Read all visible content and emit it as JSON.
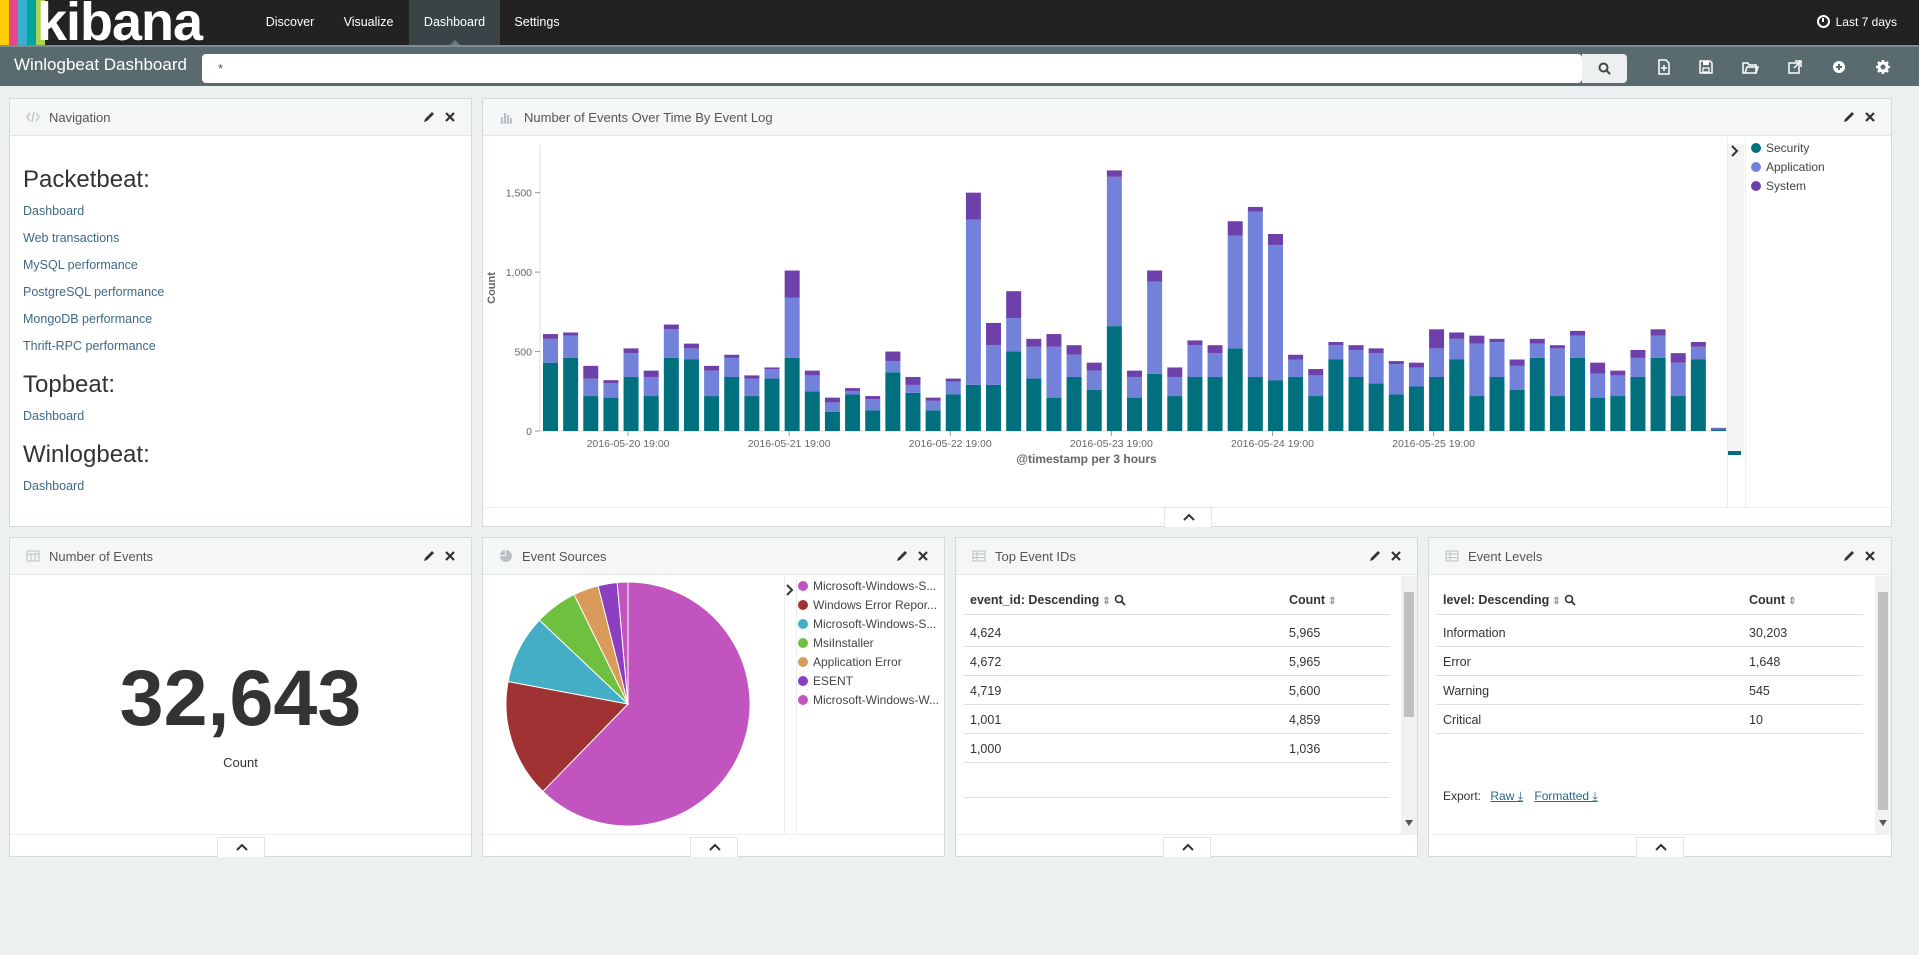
{
  "app": {
    "brand": "kibana",
    "stripe_colors": [
      "#ffcd00",
      "#e8488b",
      "#3caed2",
      "#00a69b",
      "#b0d34f"
    ]
  },
  "nav": {
    "items": [
      "Discover",
      "Visualize",
      "Dashboard",
      "Settings"
    ],
    "active": "Dashboard",
    "time_range": "Last 7 days"
  },
  "subbar": {
    "title": "Winlogbeat Dashboard",
    "query": "*",
    "tools": [
      "new-dashboard-icon",
      "save-icon",
      "open-icon",
      "share-icon",
      "add-panel-icon",
      "settings-icon"
    ]
  },
  "panels": {
    "navigation": {
      "title": "Navigation",
      "sections": [
        {
          "heading": "Packetbeat:",
          "links": [
            "Dashboard",
            "Web transactions",
            "MySQL performance",
            "PostgreSQL performance",
            "MongoDB performance",
            "Thrift-RPC performance"
          ]
        },
        {
          "heading": "Topbeat:",
          "links": [
            "Dashboard"
          ]
        },
        {
          "heading": "Winlogbeat:",
          "links": [
            "Dashboard"
          ]
        }
      ]
    },
    "events_over_time": {
      "title": "Number of Events Over Time By Event Log"
    },
    "number_of_events": {
      "title": "Number of Events",
      "value": "32,643",
      "label": "Count"
    },
    "event_sources": {
      "title": "Event Sources"
    },
    "top_event_ids": {
      "title": "Top Event IDs",
      "headers": [
        "event_id: Descending",
        "Count"
      ],
      "rows": [
        [
          "4,624",
          "5,965"
        ],
        [
          "4,672",
          "5,965"
        ],
        [
          "4,719",
          "5,600"
        ],
        [
          "1,001",
          "4,859"
        ],
        [
          "1,000",
          "1,036"
        ]
      ]
    },
    "event_levels": {
      "title": "Event Levels",
      "headers": [
        "level: Descending",
        "Count"
      ],
      "rows": [
        [
          "Information",
          "30,203"
        ],
        [
          "Error",
          "1,648"
        ],
        [
          "Warning",
          "545"
        ],
        [
          "Critical",
          "10"
        ]
      ],
      "export_label": "Export:",
      "export_raw": "Raw",
      "export_formatted": "Formatted"
    }
  },
  "chart_data": [
    {
      "type": "bar",
      "stacked": true,
      "xlabel": "@timestamp per 3 hours",
      "ylabel": "Count",
      "ylim": [
        0,
        1800
      ],
      "yticks": [
        0,
        500,
        1000,
        1500
      ],
      "ytick_labels": [
        "0",
        "500",
        "1,000",
        "1,500"
      ],
      "xtick_labels": [
        "2016-05-20 19:00",
        "2016-05-21 19:00",
        "2016-05-22 19:00",
        "2016-05-23 19:00",
        "2016-05-24 19:00",
        "2016-05-25 19:00"
      ],
      "legend_position": "right",
      "series": [
        {
          "name": "Security",
          "color": "#00707f",
          "values": [
            430,
            460,
            220,
            210,
            340,
            220,
            460,
            450,
            220,
            340,
            220,
            330,
            460,
            250,
            120,
            230,
            130,
            370,
            240,
            130,
            230,
            290,
            290,
            500,
            330,
            210,
            340,
            260,
            660,
            210,
            360,
            220,
            340,
            340,
            520,
            340,
            320,
            340,
            220,
            450,
            340,
            300,
            230,
            280,
            340,
            450,
            220,
            340,
            260,
            460,
            220,
            460,
            210,
            220,
            340,
            460,
            220,
            450,
            10
          ]
        },
        {
          "name": "Application",
          "color": "#7282da",
          "values": [
            150,
            140,
            110,
            90,
            150,
            120,
            180,
            70,
            160,
            120,
            110,
            60,
            380,
            100,
            60,
            20,
            70,
            70,
            50,
            60,
            80,
            1040,
            250,
            210,
            200,
            320,
            140,
            120,
            940,
            130,
            580,
            120,
            200,
            150,
            710,
            1040,
            850,
            110,
            130,
            90,
            170,
            190,
            190,
            120,
            180,
            130,
            330,
            220,
            150,
            90,
            300,
            140,
            150,
            130,
            120,
            140,
            210,
            80,
            5
          ]
        },
        {
          "name": "System",
          "color": "#6e40aa",
          "values": [
            30,
            20,
            80,
            20,
            30,
            40,
            30,
            30,
            30,
            20,
            20,
            10,
            170,
            30,
            30,
            20,
            20,
            60,
            50,
            20,
            20,
            170,
            140,
            170,
            50,
            80,
            60,
            50,
            40,
            40,
            70,
            60,
            30,
            50,
            90,
            30,
            70,
            30,
            40,
            20,
            30,
            30,
            20,
            30,
            120,
            40,
            50,
            20,
            40,
            30,
            20,
            30,
            70,
            30,
            50,
            40,
            60,
            30,
            5
          ]
        }
      ]
    },
    {
      "type": "pie",
      "series": [
        {
          "name": "Microsoft-Windows-S...",
          "color": "#c154be",
          "value": 61.6
        },
        {
          "name": "Windows Error Repor...",
          "color": "#a03233",
          "value": 15.5
        },
        {
          "name": "Microsoft-Windows-S...",
          "color": "#44aec7",
          "value": 9.0
        },
        {
          "name": "MsiInstaller",
          "color": "#70c040",
          "value": 5.6
        },
        {
          "name": "Application Error",
          "color": "#d99a5a",
          "value": 3.3
        },
        {
          "name": "ESENT",
          "color": "#8a3fc0",
          "value": 2.5
        },
        {
          "name": "Microsoft-Windows-W...",
          "color": "#c154be",
          "value": 1.4
        }
      ]
    }
  ]
}
